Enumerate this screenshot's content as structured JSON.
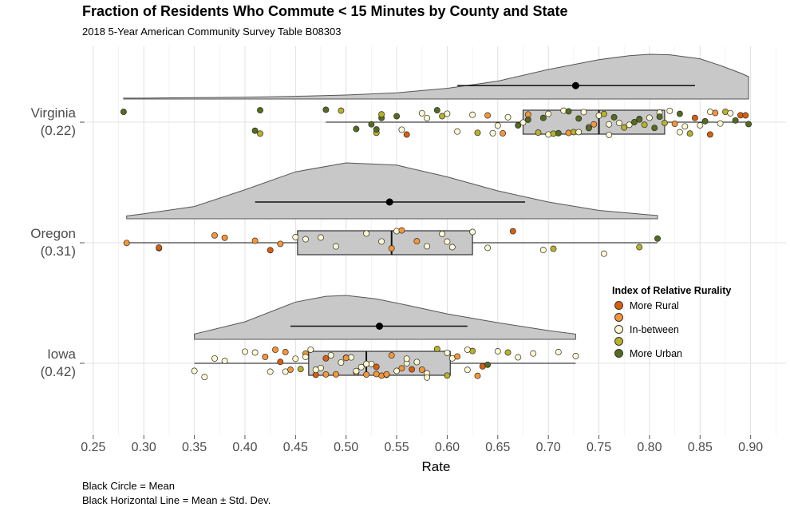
{
  "title": "Fraction of Residents Who Commute < 15 Minutes by County and State",
  "subtitle": "2018 5-Year American Community Survey Table B08303",
  "caption_lines": [
    "Black Circle = Mean",
    "Black Horizontal Line = Mean ± Std. Dev."
  ],
  "legend": {
    "title": "Index of Relative Rurality",
    "items": [
      {
        "label": "More Rural",
        "color": "#D95F0E"
      },
      {
        "label": "",
        "color": "#F59638"
      },
      {
        "label": "In-between",
        "color": "#FFFAD2"
      },
      {
        "label": "",
        "color": "#B8B22A"
      },
      {
        "label": "More Urban",
        "color": "#556B1F"
      }
    ]
  },
  "chart_data": {
    "type": "raincloud",
    "xlabel": "Rate",
    "xlim": [
      0.243,
      0.935
    ],
    "xticks": [
      "0.25",
      "0.30",
      "0.35",
      "0.40",
      "0.45",
      "0.50",
      "0.55",
      "0.60",
      "0.65",
      "0.70",
      "0.75",
      "0.80",
      "0.85",
      "0.90"
    ],
    "grid": true,
    "groups": [
      {
        "label": "Virginia",
        "sublabel": "(0.22)",
        "min": 0.28,
        "max": 0.898,
        "whisker_low": 0.48,
        "whisker_high": 0.898,
        "q1": 0.675,
        "median": 0.75,
        "q3": 0.815,
        "mean": 0.727,
        "sd_low": 0.61,
        "sd_high": 0.845,
        "density": [
          [
            0.28,
            0.02
          ],
          [
            0.3,
            0.02
          ],
          [
            0.35,
            0.03
          ],
          [
            0.4,
            0.04
          ],
          [
            0.45,
            0.06
          ],
          [
            0.5,
            0.09
          ],
          [
            0.55,
            0.14
          ],
          [
            0.6,
            0.24
          ],
          [
            0.65,
            0.4
          ],
          [
            0.7,
            0.66
          ],
          [
            0.75,
            0.88
          ],
          [
            0.78,
            0.97
          ],
          [
            0.8,
            1.0
          ],
          [
            0.82,
            0.99
          ],
          [
            0.85,
            0.9
          ],
          [
            0.87,
            0.75
          ],
          [
            0.89,
            0.58
          ],
          [
            0.898,
            0.5
          ]
        ],
        "points": [
          {
            "x": 0.28,
            "r": 5
          },
          {
            "x": 0.41,
            "r": 5
          },
          {
            "x": 0.415,
            "r": 4
          },
          {
            "x": 0.415,
            "r": 5
          },
          {
            "x": 0.48,
            "r": 5
          },
          {
            "x": 0.495,
            "r": 4
          },
          {
            "x": 0.51,
            "r": 5
          },
          {
            "x": 0.525,
            "r": 5
          },
          {
            "x": 0.53,
            "r": 4
          },
          {
            "x": 0.53,
            "r": 5
          },
          {
            "x": 0.535,
            "r": 5
          },
          {
            "x": 0.535,
            "r": 4
          },
          {
            "x": 0.55,
            "r": 5
          },
          {
            "x": 0.555,
            "r": 3
          },
          {
            "x": 0.56,
            "r": 1
          },
          {
            "x": 0.575,
            "r": 3
          },
          {
            "x": 0.58,
            "r": 3
          },
          {
            "x": 0.59,
            "r": 5
          },
          {
            "x": 0.595,
            "r": 4
          },
          {
            "x": 0.6,
            "r": 3
          },
          {
            "x": 0.61,
            "r": 3
          },
          {
            "x": 0.625,
            "r": 3
          },
          {
            "x": 0.63,
            "r": 4
          },
          {
            "x": 0.64,
            "r": 2
          },
          {
            "x": 0.645,
            "r": 3
          },
          {
            "x": 0.655,
            "r": 2
          },
          {
            "x": 0.66,
            "r": 3
          },
          {
            "x": 0.67,
            "r": 5
          },
          {
            "x": 0.675,
            "r": 3
          },
          {
            "x": 0.68,
            "r": 2
          },
          {
            "x": 0.69,
            "r": 4
          },
          {
            "x": 0.695,
            "r": 5
          },
          {
            "x": 0.7,
            "r": 3
          },
          {
            "x": 0.705,
            "r": 4
          },
          {
            "x": 0.71,
            "r": 5
          },
          {
            "x": 0.715,
            "r": 3
          },
          {
            "x": 0.72,
            "r": 2
          },
          {
            "x": 0.725,
            "r": 4
          },
          {
            "x": 0.73,
            "r": 5
          },
          {
            "x": 0.735,
            "r": 3
          },
          {
            "x": 0.74,
            "r": 3
          },
          {
            "x": 0.745,
            "r": 2
          },
          {
            "x": 0.75,
            "r": 3
          },
          {
            "x": 0.755,
            "r": 4
          },
          {
            "x": 0.76,
            "r": 3
          },
          {
            "x": 0.765,
            "r": 5
          },
          {
            "x": 0.77,
            "r": 3
          },
          {
            "x": 0.775,
            "r": 4
          },
          {
            "x": 0.78,
            "r": 3
          },
          {
            "x": 0.785,
            "r": 5
          },
          {
            "x": 0.79,
            "r": 3
          },
          {
            "x": 0.795,
            "r": 4
          },
          {
            "x": 0.8,
            "r": 3
          },
          {
            "x": 0.805,
            "r": 5
          },
          {
            "x": 0.81,
            "r": 3
          },
          {
            "x": 0.815,
            "r": 4
          },
          {
            "x": 0.82,
            "r": 3
          },
          {
            "x": 0.825,
            "r": 2
          },
          {
            "x": 0.83,
            "r": 5
          },
          {
            "x": 0.835,
            "r": 3
          },
          {
            "x": 0.84,
            "r": 4
          },
          {
            "x": 0.845,
            "r": 1
          },
          {
            "x": 0.85,
            "r": 3
          },
          {
            "x": 0.855,
            "r": 5
          },
          {
            "x": 0.86,
            "r": 3
          },
          {
            "x": 0.865,
            "r": 2
          },
          {
            "x": 0.87,
            "r": 3
          },
          {
            "x": 0.875,
            "r": 4
          },
          {
            "x": 0.88,
            "r": 3
          },
          {
            "x": 0.885,
            "r": 5
          },
          {
            "x": 0.89,
            "r": 1
          },
          {
            "x": 0.895,
            "r": 1
          },
          {
            "x": 0.898,
            "r": 5
          },
          {
            "x": 0.72,
            "r": 5
          },
          {
            "x": 0.74,
            "r": 5
          },
          {
            "x": 0.76,
            "r": 3
          },
          {
            "x": 0.79,
            "r": 5
          },
          {
            "x": 0.81,
            "r": 5
          },
          {
            "x": 0.83,
            "r": 3
          },
          {
            "x": 0.7,
            "r": 3
          },
          {
            "x": 0.68,
            "r": 5
          },
          {
            "x": 0.65,
            "r": 3
          },
          {
            "x": 0.73,
            "r": 3
          },
          {
            "x": 0.86,
            "r": 1
          }
        ]
      },
      {
        "label": "Oregon",
        "sublabel": "(0.31)",
        "min": 0.283,
        "max": 0.808,
        "whisker_low": 0.283,
        "whisker_high": 0.808,
        "q1": 0.452,
        "median": 0.545,
        "q3": 0.625,
        "mean": 0.543,
        "sd_low": 0.41,
        "sd_high": 0.677,
        "density": [
          [
            0.283,
            0.05
          ],
          [
            0.3,
            0.09
          ],
          [
            0.35,
            0.22
          ],
          [
            0.4,
            0.52
          ],
          [
            0.45,
            0.84
          ],
          [
            0.5,
            1.0
          ],
          [
            0.55,
            0.96
          ],
          [
            0.6,
            0.75
          ],
          [
            0.65,
            0.5
          ],
          [
            0.7,
            0.3
          ],
          [
            0.75,
            0.15
          ],
          [
            0.8,
            0.07
          ],
          [
            0.808,
            0.06
          ]
        ],
        "points": [
          {
            "x": 0.283,
            "r": 2
          },
          {
            "x": 0.315,
            "r": 1
          },
          {
            "x": 0.315,
            "r": 1
          },
          {
            "x": 0.37,
            "r": 2
          },
          {
            "x": 0.38,
            "r": 2
          },
          {
            "x": 0.41,
            "r": 2
          },
          {
            "x": 0.425,
            "r": 1
          },
          {
            "x": 0.435,
            "r": 2
          },
          {
            "x": 0.45,
            "r": 3
          },
          {
            "x": 0.46,
            "r": 3
          },
          {
            "x": 0.475,
            "r": 3
          },
          {
            "x": 0.49,
            "r": 3
          },
          {
            "x": 0.52,
            "r": 3
          },
          {
            "x": 0.535,
            "r": 3
          },
          {
            "x": 0.545,
            "r": 2
          },
          {
            "x": 0.55,
            "r": 3
          },
          {
            "x": 0.555,
            "r": 2
          },
          {
            "x": 0.57,
            "r": 2
          },
          {
            "x": 0.58,
            "r": 3
          },
          {
            "x": 0.6,
            "r": 3
          },
          {
            "x": 0.605,
            "r": 3
          },
          {
            "x": 0.625,
            "r": 3
          },
          {
            "x": 0.64,
            "r": 3
          },
          {
            "x": 0.665,
            "r": 1
          },
          {
            "x": 0.695,
            "r": 3
          },
          {
            "x": 0.705,
            "r": 4
          },
          {
            "x": 0.755,
            "r": 3
          },
          {
            "x": 0.79,
            "r": 4
          },
          {
            "x": 0.808,
            "r": 5
          },
          {
            "x": 0.595,
            "r": 3
          }
        ]
      },
      {
        "label": "Iowa",
        "sublabel": "(0.42)",
        "min": 0.35,
        "max": 0.727,
        "whisker_low": 0.35,
        "whisker_high": 0.727,
        "q1": 0.463,
        "median": 0.52,
        "q3": 0.603,
        "mean": 0.533,
        "sd_low": 0.445,
        "sd_high": 0.62,
        "density": [
          [
            0.35,
            0.12
          ],
          [
            0.4,
            0.4
          ],
          [
            0.45,
            0.85
          ],
          [
            0.48,
            0.98
          ],
          [
            0.5,
            1.0
          ],
          [
            0.53,
            0.92
          ],
          [
            0.56,
            0.78
          ],
          [
            0.6,
            0.58
          ],
          [
            0.65,
            0.38
          ],
          [
            0.7,
            0.2
          ],
          [
            0.727,
            0.12
          ]
        ],
        "points": [
          {
            "x": 0.35,
            "r": 3
          },
          {
            "x": 0.36,
            "r": 3
          },
          {
            "x": 0.37,
            "r": 3
          },
          {
            "x": 0.38,
            "r": 3
          },
          {
            "x": 0.4,
            "r": 3
          },
          {
            "x": 0.41,
            "r": 3
          },
          {
            "x": 0.42,
            "r": 2
          },
          {
            "x": 0.425,
            "r": 3
          },
          {
            "x": 0.43,
            "r": 2
          },
          {
            "x": 0.435,
            "r": 1
          },
          {
            "x": 0.44,
            "r": 3
          },
          {
            "x": 0.445,
            "r": 2
          },
          {
            "x": 0.45,
            "r": 3
          },
          {
            "x": 0.455,
            "r": 4
          },
          {
            "x": 0.46,
            "r": 2
          },
          {
            "x": 0.465,
            "r": 3
          },
          {
            "x": 0.47,
            "r": 1
          },
          {
            "x": 0.475,
            "r": 3
          },
          {
            "x": 0.48,
            "r": 2
          },
          {
            "x": 0.485,
            "r": 3
          },
          {
            "x": 0.49,
            "r": 2
          },
          {
            "x": 0.495,
            "r": 3
          },
          {
            "x": 0.5,
            "r": 1
          },
          {
            "x": 0.505,
            "r": 3
          },
          {
            "x": 0.51,
            "r": 2
          },
          {
            "x": 0.515,
            "r": 3
          },
          {
            "x": 0.52,
            "r": 2
          },
          {
            "x": 0.525,
            "r": 3
          },
          {
            "x": 0.53,
            "r": 1
          },
          {
            "x": 0.535,
            "r": 2
          },
          {
            "x": 0.54,
            "r": 3
          },
          {
            "x": 0.545,
            "r": 2
          },
          {
            "x": 0.55,
            "r": 3
          },
          {
            "x": 0.555,
            "r": 2
          },
          {
            "x": 0.56,
            "r": 3
          },
          {
            "x": 0.565,
            "r": 1
          },
          {
            "x": 0.57,
            "r": 3
          },
          {
            "x": 0.575,
            "r": 2
          },
          {
            "x": 0.58,
            "r": 3
          },
          {
            "x": 0.59,
            "r": 4
          },
          {
            "x": 0.6,
            "r": 3
          },
          {
            "x": 0.605,
            "r": 3
          },
          {
            "x": 0.61,
            "r": 2
          },
          {
            "x": 0.62,
            "r": 3
          },
          {
            "x": 0.625,
            "r": 4
          },
          {
            "x": 0.63,
            "r": 2
          },
          {
            "x": 0.635,
            "r": 1
          },
          {
            "x": 0.64,
            "r": 5
          },
          {
            "x": 0.65,
            "r": 3
          },
          {
            "x": 0.66,
            "r": 4
          },
          {
            "x": 0.67,
            "r": 3
          },
          {
            "x": 0.685,
            "r": 3
          },
          {
            "x": 0.71,
            "r": 3
          },
          {
            "x": 0.727,
            "r": 3
          },
          {
            "x": 0.47,
            "r": 3
          },
          {
            "x": 0.5,
            "r": 2
          },
          {
            "x": 0.52,
            "r": 3
          },
          {
            "x": 0.48,
            "r": 1
          },
          {
            "x": 0.54,
            "r": 2
          },
          {
            "x": 0.56,
            "r": 3
          },
          {
            "x": 0.46,
            "r": 3
          },
          {
            "x": 0.44,
            "r": 2
          },
          {
            "x": 0.58,
            "r": 3
          },
          {
            "x": 0.6,
            "r": 4
          },
          {
            "x": 0.62,
            "r": 3
          },
          {
            "x": 0.51,
            "r": 3
          },
          {
            "x": 0.53,
            "r": 2
          }
        ]
      }
    ]
  }
}
